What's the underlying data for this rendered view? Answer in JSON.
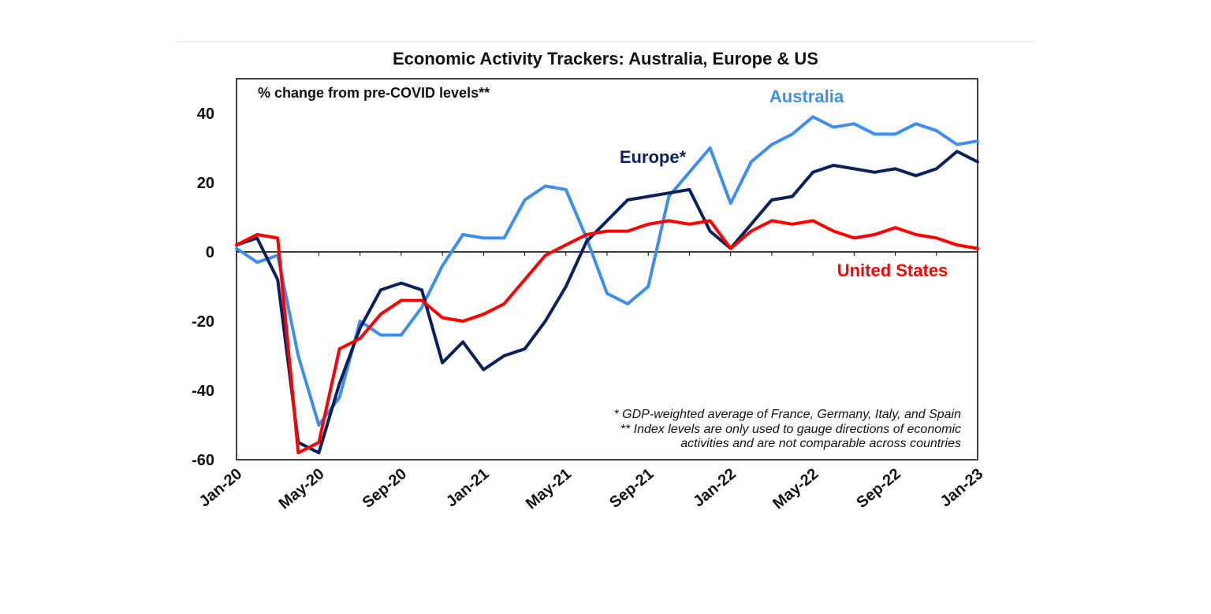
{
  "chart_data": {
    "type": "line",
    "title": "Economic Activity Trackers: Australia, Europe & US",
    "subtitle": "% change from pre-COVID levels**",
    "xlabel": "",
    "ylabel": "",
    "ylim": [
      -60,
      50
    ],
    "yticks": [
      "40",
      "20",
      "0",
      "-20",
      "-40",
      "-60"
    ],
    "ytick_values": [
      40,
      20,
      0,
      -20,
      -40,
      -60
    ],
    "xticks": [
      "Jan-20",
      "May-20",
      "Sep-20",
      "Jan-21",
      "May-21",
      "Sep-21",
      "Jan-22",
      "May-22",
      "Sep-22",
      "Jan-23"
    ],
    "xtick_values": [
      "2020-01",
      "2020-05",
      "2020-09",
      "2021-01",
      "2021-05",
      "2021-09",
      "2022-01",
      "2022-05",
      "2022-09",
      "2023-01"
    ],
    "grid": false,
    "notes": [
      "* GDP-weighted average of France, Germany, Italy, and Spain",
      "** Index levels are only used to gauge directions of economic",
      "activities and are not comparable across countries"
    ],
    "series": [
      {
        "name": "Australia",
        "label": "Australia",
        "color": "#3d8ef0",
        "x": [
          "2020-01",
          "2020-02",
          "2020-03",
          "2020-04",
          "2020-05",
          "2020-06",
          "2020-07",
          "2020-08",
          "2020-09",
          "2020-10",
          "2020-11",
          "2020-12",
          "2021-01",
          "2021-02",
          "2021-03",
          "2021-04",
          "2021-05",
          "2021-06",
          "2021-07",
          "2021-08",
          "2021-09",
          "2021-10",
          "2021-11",
          "2021-12",
          "2022-01",
          "2022-02",
          "2022-03",
          "2022-04",
          "2022-05",
          "2022-06",
          "2022-07",
          "2022-08",
          "2022-09",
          "2022-10",
          "2022-11",
          "2022-12",
          "2023-01"
        ],
        "values": [
          1,
          -3,
          -1,
          -30,
          -50,
          -42,
          -20,
          -24,
          -24,
          -16,
          -4,
          5,
          4,
          4,
          15,
          19,
          18,
          4,
          -12,
          -15,
          -10,
          16,
          23,
          30,
          14,
          26,
          31,
          34,
          39,
          36,
          37,
          34,
          34,
          37,
          35,
          31,
          32
        ]
      },
      {
        "name": "Europe*",
        "label": "Europe*",
        "color": "#0d1f5c",
        "x": [
          "2020-01",
          "2020-02",
          "2020-03",
          "2020-04",
          "2020-05",
          "2020-06",
          "2020-07",
          "2020-08",
          "2020-09",
          "2020-10",
          "2020-11",
          "2020-12",
          "2021-01",
          "2021-02",
          "2021-03",
          "2021-04",
          "2021-05",
          "2021-06",
          "2021-07",
          "2021-08",
          "2021-09",
          "2021-10",
          "2021-11",
          "2021-12",
          "2022-01",
          "2022-02",
          "2022-03",
          "2022-04",
          "2022-05",
          "2022-06",
          "2022-07",
          "2022-08",
          "2022-09",
          "2022-10",
          "2022-11",
          "2022-12",
          "2023-01"
        ],
        "values": [
          2,
          4,
          -8,
          -55,
          -58,
          -38,
          -22,
          -11,
          -9,
          -11,
          -32,
          -26,
          -34,
          -30,
          -28,
          -20,
          -10,
          3,
          9,
          15,
          16,
          17,
          18,
          6,
          1,
          8,
          15,
          16,
          23,
          25,
          24,
          23,
          24,
          22,
          24,
          29,
          26
        ]
      },
      {
        "name": "United States",
        "label": "United States",
        "color": "#ff0000",
        "x": [
          "2020-01",
          "2020-02",
          "2020-03",
          "2020-04",
          "2020-05",
          "2020-06",
          "2020-07",
          "2020-08",
          "2020-09",
          "2020-10",
          "2020-11",
          "2020-12",
          "2021-01",
          "2021-02",
          "2021-03",
          "2021-04",
          "2021-05",
          "2021-06",
          "2021-07",
          "2021-08",
          "2021-09",
          "2021-10",
          "2021-11",
          "2021-12",
          "2022-01",
          "2022-02",
          "2022-03",
          "2022-04",
          "2022-05",
          "2022-06",
          "2022-07",
          "2022-08",
          "2022-09",
          "2022-10",
          "2022-11",
          "2022-12",
          "2023-01"
        ],
        "values": [
          2,
          5,
          4,
          -58,
          -55,
          -28,
          -25,
          -18,
          -14,
          -14,
          -19,
          -20,
          -18,
          -15,
          -8,
          -1,
          2,
          5,
          6,
          6,
          8,
          9,
          8,
          9,
          1,
          6,
          9,
          8,
          9,
          6,
          4,
          5,
          7,
          5,
          4,
          2,
          1
        ]
      }
    ]
  }
}
